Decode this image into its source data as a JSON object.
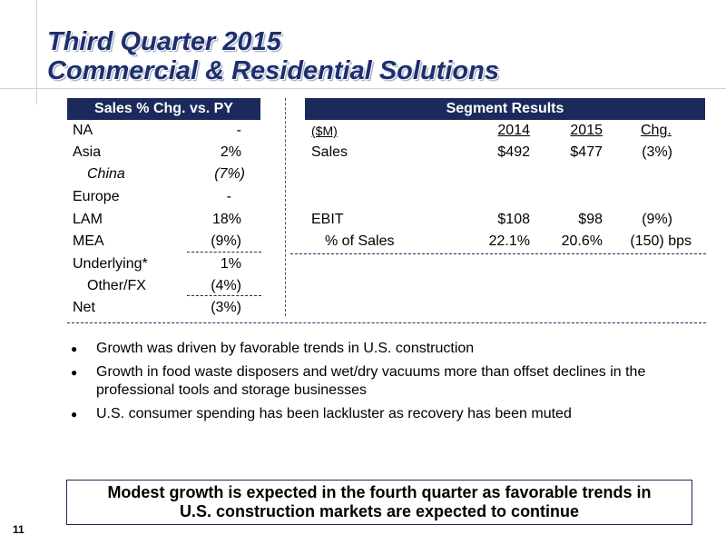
{
  "title": {
    "line1": "Third Quarter 2015",
    "line2": "Commercial & Residential Solutions"
  },
  "sales_table": {
    "header": "Sales % Chg. vs. PY",
    "rows": [
      {
        "label": "NA",
        "value": "-"
      },
      {
        "label": "Asia",
        "value": "2%"
      },
      {
        "label": "China",
        "value": "(7%)"
      },
      {
        "label": "Europe",
        "value": "-"
      },
      {
        "label": "LAM",
        "value": "18%"
      },
      {
        "label": "MEA",
        "value": "(9%)"
      },
      {
        "label": "Underlying*",
        "value": "1%"
      },
      {
        "label": "Other/FX",
        "value": "(4%)"
      },
      {
        "label": "Net",
        "value": "(3%)"
      }
    ]
  },
  "segment_results": {
    "header": "Segment Results",
    "columns": [
      "($M)",
      "2014",
      "2015",
      "Chg."
    ],
    "rows": [
      {
        "label": "Sales",
        "y2014": "$492",
        "y2015": "$477",
        "chg": "(3%)"
      },
      {
        "label": "EBIT",
        "y2014": "$108",
        "y2015": "$98",
        "chg": "(9%)"
      },
      {
        "label": "% of Sales",
        "y2014": "22.1%",
        "y2015": "20.6%",
        "chg": "(150) bps"
      }
    ]
  },
  "bullets": [
    "Growth was driven by favorable trends in U.S. construction",
    "Growth in food waste disposers and wet/dry vacuums more than offset declines in the professional tools and storage businesses",
    "U.S. consumer spending has been lackluster as recovery has been muted"
  ],
  "callout": {
    "line1": "Modest growth is expected in the fourth quarter as favorable trends in",
    "line2": "U.S. construction markets are expected to continue"
  },
  "page_number": "11"
}
